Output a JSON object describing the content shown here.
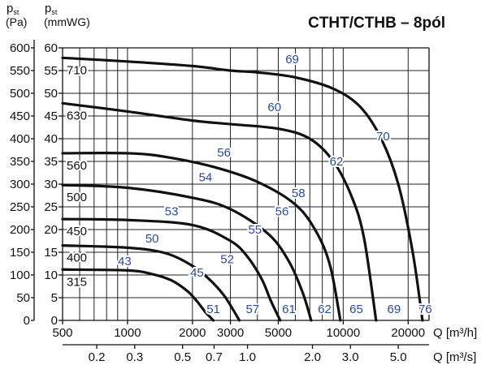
{
  "chart_data": {
    "type": "line",
    "title": "CTHT/CTHB – 8pól",
    "y_left": {
      "label_main": "p",
      "label_sub": "st",
      "unit": "(Pa)",
      "ticks": [
        0,
        50,
        100,
        150,
        200,
        250,
        300,
        350,
        400,
        450,
        500,
        550,
        600
      ],
      "ylim": [
        0,
        600
      ]
    },
    "y_right": {
      "label_main": "p",
      "label_sub": "st",
      "unit": "(mmWG)",
      "ticks": [
        0,
        5,
        10,
        15,
        20,
        25,
        30,
        35,
        40,
        45,
        50,
        55,
        60
      ]
    },
    "x_top": {
      "label": "Q [m³/h]",
      "scale": "log",
      "xlim": [
        500,
        25000
      ],
      "ticks": [
        500,
        1000,
        2000,
        3000,
        5000,
        10000,
        20000
      ]
    },
    "x_bottom": {
      "label": "Q [m³/s]",
      "ticks": [
        "0.2",
        "0.3",
        "0.5",
        "0.7",
        "1.0",
        "2.0",
        "3.0",
        "5.0"
      ],
      "tick_values_m3h": [
        720,
        1080,
        1800,
        2520,
        3600,
        7200,
        10800,
        18000
      ]
    },
    "grid": true,
    "series": [
      {
        "name": "315",
        "x": [
          500,
          1000,
          1300,
          1600,
          1900,
          2100,
          2300,
          2500
        ],
        "y": [
          112,
          110,
          102,
          88,
          64,
          42,
          18,
          0
        ]
      },
      {
        "name": "400",
        "x": [
          500,
          1000,
          1500,
          2000,
          2400,
          2800,
          3100,
          3300
        ],
        "y": [
          165,
          160,
          148,
          120,
          90,
          55,
          22,
          0
        ]
      },
      {
        "name": "450",
        "x": [
          500,
          1000,
          2000,
          3000,
          3600,
          4200,
          4600,
          5100
        ],
        "y": [
          223,
          221,
          210,
          175,
          140,
          90,
          45,
          0
        ]
      },
      {
        "name": "500",
        "x": [
          500,
          1000,
          2000,
          3000,
          4500,
          5600,
          6500,
          7100
        ],
        "y": [
          298,
          292,
          270,
          245,
          190,
          130,
          60,
          0
        ]
      },
      {
        "name": "560",
        "x": [
          500,
          1000,
          1500,
          2500,
          4000,
          6000,
          7500,
          8700,
          9700
        ],
        "y": [
          368,
          368,
          360,
          338,
          305,
          255,
          195,
          120,
          0
        ]
      },
      {
        "name": "630",
        "x": [
          500,
          1000,
          2000,
          3000,
          5000,
          7000,
          9000,
          11000,
          12500,
          14200
        ],
        "y": [
          478,
          460,
          440,
          432,
          422,
          400,
          350,
          270,
          180,
          0
        ]
      },
      {
        "name": "710",
        "x": [
          500,
          1000,
          2000,
          3000,
          4000,
          6000,
          9000,
          12000,
          15000,
          18000,
          21000,
          23300
        ],
        "y": [
          578,
          570,
          560,
          550,
          546,
          535,
          510,
          470,
          400,
          300,
          150,
          0
        ]
      }
    ],
    "size_labels": [
      "710",
      "630",
      "560",
      "500",
      "450",
      "400",
      "315"
    ],
    "db_labels": [
      {
        "text": "69",
        "x": 5800,
        "y": 575
      },
      {
        "text": "60",
        "x": 4800,
        "y": 470
      },
      {
        "text": "56",
        "x": 2800,
        "y": 370
      },
      {
        "text": "54",
        "x": 2300,
        "y": 315
      },
      {
        "text": "53",
        "x": 1600,
        "y": 240
      },
      {
        "text": "50",
        "x": 1300,
        "y": 180
      },
      {
        "text": "43",
        "x": 970,
        "y": 130
      },
      {
        "text": "58",
        "x": 6200,
        "y": 280
      },
      {
        "text": "56",
        "x": 5200,
        "y": 240
      },
      {
        "text": "55",
        "x": 3900,
        "y": 200
      },
      {
        "text": "52",
        "x": 2900,
        "y": 135
      },
      {
        "text": "45",
        "x": 2100,
        "y": 105
      },
      {
        "text": "62",
        "x": 9300,
        "y": 350
      },
      {
        "text": "70",
        "x": 15300,
        "y": 405
      },
      {
        "text": "51",
        "x": 2500,
        "y": 25
      },
      {
        "text": "57",
        "x": 3800,
        "y": 25
      },
      {
        "text": "61",
        "x": 5600,
        "y": 25
      },
      {
        "text": "62",
        "x": 8200,
        "y": 25
      },
      {
        "text": "65",
        "x": 11500,
        "y": 25
      },
      {
        "text": "69",
        "x": 17200,
        "y": 25
      },
      {
        "text": "76",
        "x": 24000,
        "y": 25
      }
    ]
  }
}
